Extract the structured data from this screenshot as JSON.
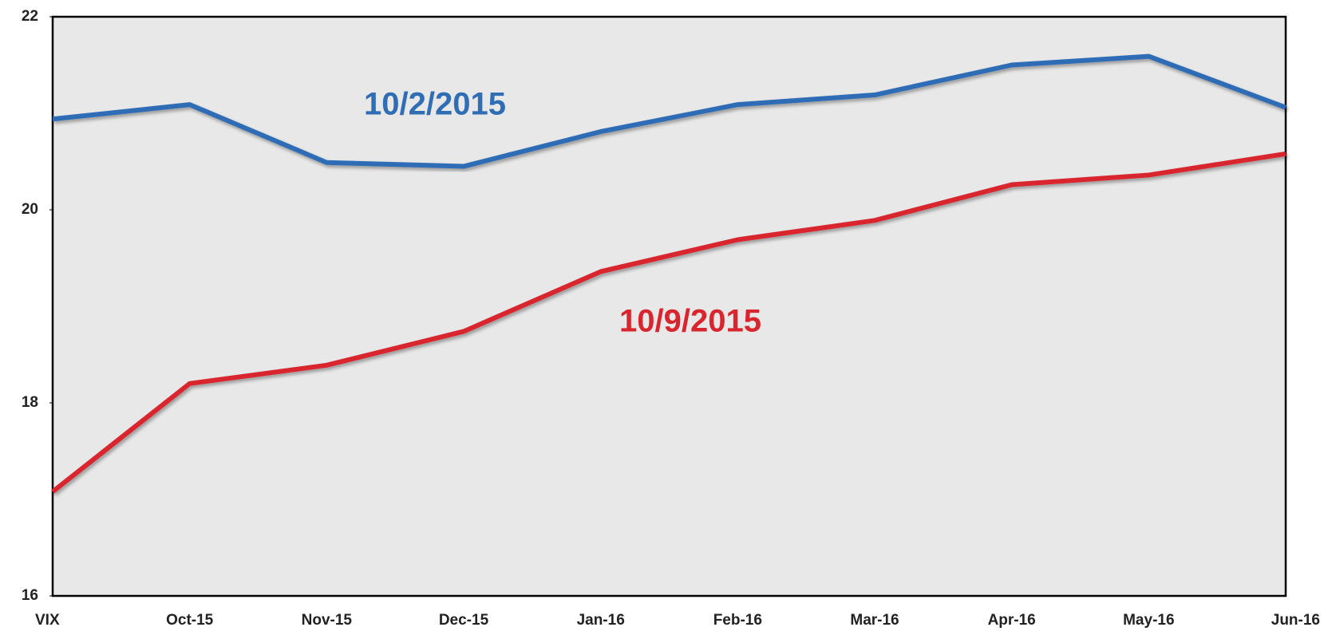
{
  "chart_data": {
    "type": "line",
    "categories": [
      "VIX",
      "Oct-15",
      "Nov-15",
      "Dec-15",
      "Jan-16",
      "Feb-16",
      "Mar-16",
      "Apr-16",
      "May-16",
      "Jun-16"
    ],
    "series": [
      {
        "name": "10/2/2015",
        "color": "#2f6db5",
        "values": [
          20.94,
          21.09,
          20.49,
          20.45,
          20.81,
          21.09,
          21.19,
          21.5,
          21.59,
          21.06
        ]
      },
      {
        "name": "10/9/2015",
        "color": "#d9262e",
        "values": [
          17.08,
          18.2,
          18.39,
          18.74,
          19.36,
          19.69,
          19.89,
          20.26,
          20.36,
          20.58
        ]
      }
    ],
    "ylim": [
      16,
      22
    ],
    "yticks": [
      16,
      18,
      20,
      22
    ],
    "grid": false
  }
}
